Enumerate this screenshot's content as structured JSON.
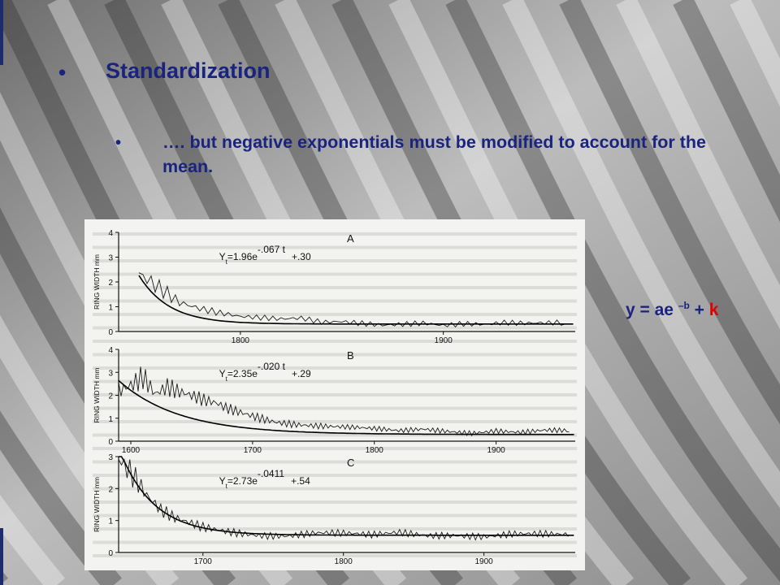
{
  "slide": {
    "title": "Standardization",
    "title_bullet": "•",
    "subtitle": "…. but negative exponentials must be modified to account for the mean.",
    "subtitle_bullet": "•",
    "formula": {
      "base": "y = ae ",
      "exponent": "–b",
      "plus": " + ",
      "k": "k"
    }
  },
  "colors": {
    "text": "#1a237e",
    "accent": "#e00000"
  },
  "chart_data": [
    {
      "type": "line",
      "panel_label": "A",
      "ylabel": "RING WIDTH mm",
      "equation": {
        "lhs": "Y",
        "sub": "t",
        "eq": "=1.96e",
        "exp": "-.067 t",
        "tail": "+.30"
      },
      "ylim": [
        0,
        4
      ],
      "yticks": [
        "4",
        "3",
        "2",
        "1",
        "0"
      ],
      "xlim": [
        1740,
        1965
      ],
      "xticks": [
        "1800",
        "1900"
      ],
      "xtick_values": [
        1800,
        1900
      ],
      "fit": {
        "a": 1.96,
        "b": 0.067,
        "k": 0.3,
        "start": 1750
      },
      "series": [
        {
          "x": [
            1750,
            1760,
            1770,
            1780,
            1790,
            1800,
            1810,
            1820,
            1830,
            1840,
            1850,
            1860,
            1870,
            1880,
            1890,
            1900,
            1910,
            1920,
            1930,
            1940,
            1950,
            1960
          ],
          "values": [
            2.6,
            1.9,
            1.2,
            0.9,
            0.7,
            0.55,
            0.5,
            0.45,
            0.5,
            0.35,
            0.4,
            0.35,
            0.3,
            0.35,
            0.4,
            0.3,
            0.35,
            0.3,
            0.35,
            0.3,
            0.3,
            0.3
          ]
        }
      ]
    },
    {
      "type": "line",
      "panel_label": "B",
      "ylabel": "RING WIDTH mm",
      "equation": {
        "lhs": "Y",
        "sub": "t",
        "eq": "=2.35e",
        "exp": "-.020 t",
        "tail": "+.29"
      },
      "ylim": [
        0,
        4
      ],
      "yticks": [
        "4",
        "3",
        "2",
        "1",
        "0"
      ],
      "xlim": [
        1590,
        1965
      ],
      "xticks": [
        "1600",
        "1700",
        "1800",
        "1900"
      ],
      "xtick_values": [
        1600,
        1700,
        1800,
        1900
      ],
      "fit": {
        "a": 2.35,
        "b": 0.02,
        "k": 0.29,
        "start": 1590
      },
      "series": [
        {
          "x": [
            1590,
            1600,
            1610,
            1620,
            1630,
            1640,
            1650,
            1660,
            1670,
            1680,
            1690,
            1700,
            1720,
            1740,
            1760,
            1780,
            1800,
            1820,
            1840,
            1860,
            1880,
            1900,
            1920,
            1940,
            1960
          ],
          "values": [
            2.5,
            2.7,
            3.0,
            2.1,
            2.3,
            2.0,
            1.8,
            1.6,
            1.5,
            1.3,
            1.2,
            1.1,
            0.9,
            0.8,
            0.7,
            0.6,
            0.5,
            0.4,
            0.5,
            0.45,
            0.4,
            0.5,
            0.4,
            0.45,
            0.4
          ]
        }
      ]
    },
    {
      "type": "line",
      "panel_label": "C",
      "ylabel": "RING WIDTH mm",
      "equation": {
        "lhs": "Y",
        "sub": "t",
        "eq": "=2.73e",
        "exp": "-.0411",
        "tail": "+.54"
      },
      "ylim": [
        0,
        3
      ],
      "yticks": [
        "3",
        "2",
        "1",
        "0"
      ],
      "xlim": [
        1640,
        1965
      ],
      "xticks": [
        "1700",
        "1800",
        "1900"
      ],
      "xtick_values": [
        1700,
        1800,
        1900
      ],
      "fit": {
        "a": 2.73,
        "b": 0.0411,
        "k": 0.54,
        "start": 1640
      },
      "series": [
        {
          "x": [
            1640,
            1650,
            1660,
            1670,
            1680,
            1690,
            1700,
            1720,
            1740,
            1760,
            1780,
            1800,
            1820,
            1840,
            1860,
            1880,
            1900,
            1920,
            1940,
            1960
          ],
          "values": [
            2.9,
            2.2,
            1.6,
            1.2,
            1.0,
            0.9,
            0.8,
            0.7,
            0.6,
            0.55,
            0.6,
            0.55,
            0.5,
            0.6,
            0.55,
            0.6,
            0.55,
            0.6,
            0.55,
            0.5
          ]
        }
      ]
    }
  ]
}
